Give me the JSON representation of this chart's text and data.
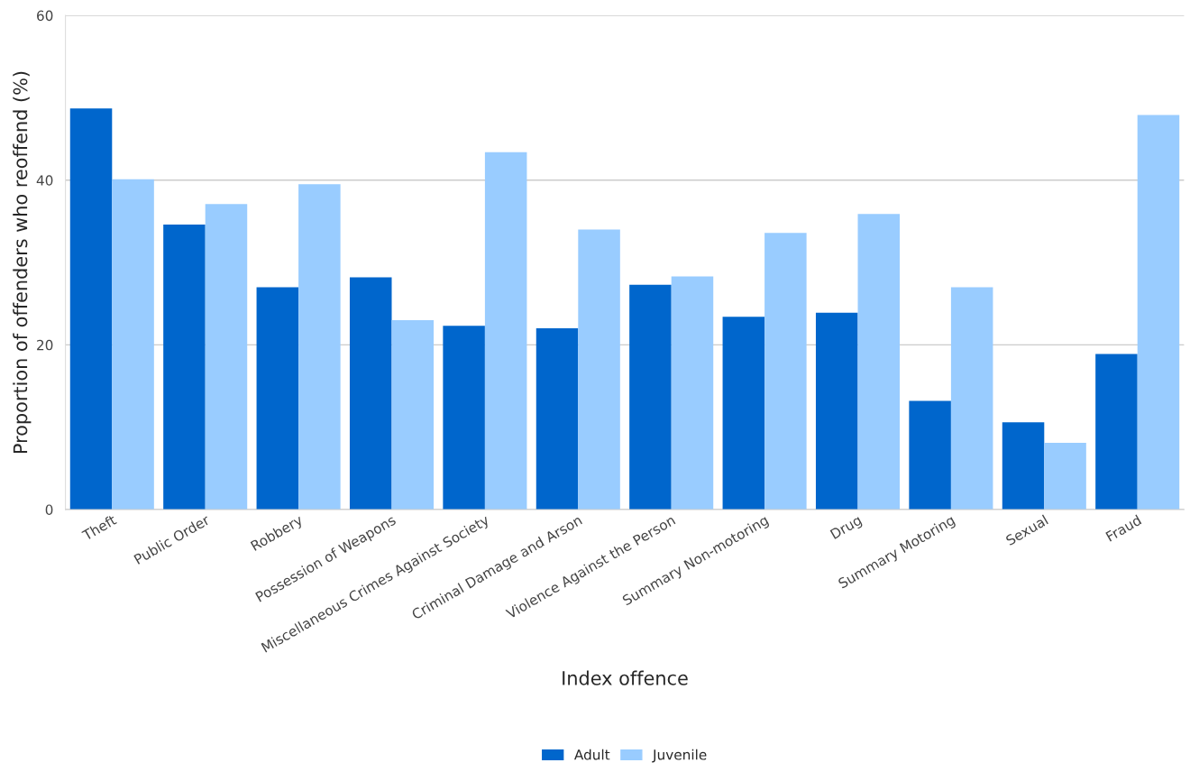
{
  "chart_data": {
    "type": "bar",
    "xlabel": "Index offence",
    "ylabel": "Proportion of offenders who reoffend (%)",
    "categories": [
      "Theft",
      "Public Order",
      "Robbery",
      "Possession of Weapons",
      "Miscellaneous Crimes Against Society",
      "Criminal Damage and Arson",
      "Violence Against the Person",
      "Summary Non-motoring",
      "Drug",
      "Summary Motoring",
      "Sexual",
      "Fraud"
    ],
    "series": [
      {
        "name": "Adult",
        "color": "#0066cc",
        "values": [
          48.7,
          34.6,
          27.0,
          28.2,
          22.3,
          22.0,
          27.3,
          23.4,
          23.9,
          13.2,
          10.6,
          18.9
        ]
      },
      {
        "name": "Juvenile",
        "color": "#99ccff",
        "values": [
          40.1,
          37.1,
          39.5,
          23.0,
          43.4,
          34.0,
          28.3,
          33.6,
          35.9,
          27.0,
          8.1,
          47.9
        ]
      }
    ],
    "ylim": [
      0,
      60
    ],
    "yticks": [
      0,
      20,
      40,
      60
    ],
    "grid": "y",
    "legend": "bottom"
  }
}
